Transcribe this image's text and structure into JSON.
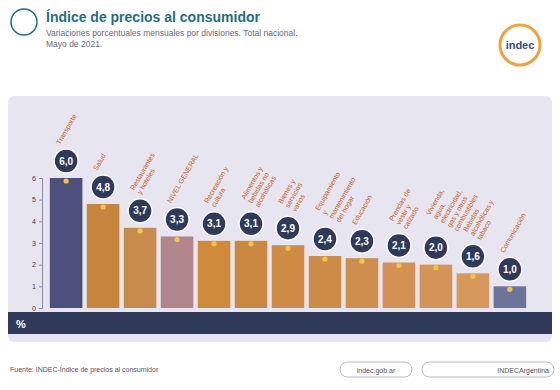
{
  "chart_data": {
    "type": "bar",
    "title": "Índice de precios al consumidor",
    "subtitle": "Variaciones porcentuales mensuales por divisiones. Total nacional. Mayo de 2021.",
    "categories": [
      "Transporte",
      "Salud",
      "Restaurantes y hoteles",
      "NIVEL GENERAL",
      "Recreación y cultura",
      "Alimentos y bebidas no alcohólicas",
      "Bienes y servicios varios",
      "Equipamiento y mantenimiento del hogar",
      "Educación",
      "Prendas de vestir y calzado",
      "Vivienda, agua, electricidad, gas y otros combustibles",
      "Bebidas alcohólicas y tabaco",
      "Comunicación"
    ],
    "values": [
      6.0,
      4.8,
      3.7,
      3.3,
      3.1,
      3.1,
      2.9,
      2.4,
      2.3,
      2.1,
      2.0,
      1.6,
      1.0
    ],
    "value_labels": [
      "6,0",
      "4,8",
      "3,7",
      "3,3",
      "3,1",
      "3,1",
      "2,9",
      "2,4",
      "2,3",
      "2,1",
      "2,0",
      "1,6",
      "1,0"
    ],
    "colors": [
      "#4d4f7d",
      "#c7843d",
      "#c98b4b",
      "#b0868a",
      "#d08a3c",
      "#c9873f",
      "#cf8a45",
      "#cc8b47",
      "#cf8f4c",
      "#d39252",
      "#d49357",
      "#d7985c",
      "#6d7499"
    ],
    "ylim": [
      0,
      6
    ],
    "yticks": [
      0,
      1,
      2,
      3,
      4,
      5,
      6
    ],
    "ylabel": "%",
    "data_labels": true,
    "grid": false
  },
  "header": {
    "logo": "indec"
  },
  "footer": {
    "source": "Fuente: INDEC-Índice de precios al consumidor",
    "web": "indec.gob.ar",
    "social": "INDECArgentina"
  }
}
